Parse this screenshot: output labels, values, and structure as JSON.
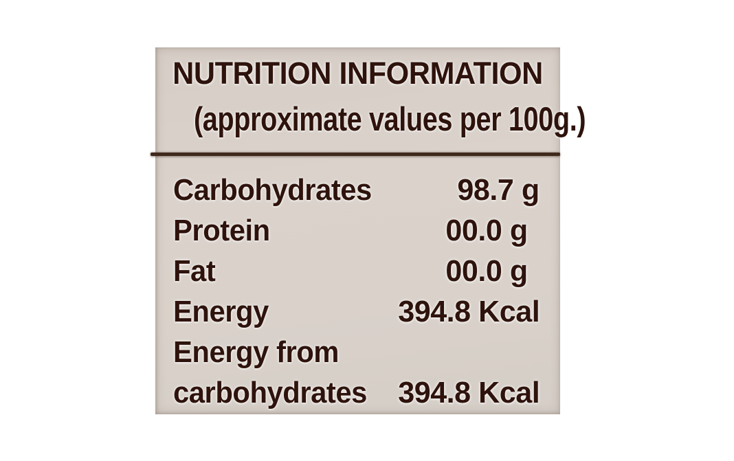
{
  "nutrition_label": {
    "title": "NUTRITION INFORMATION",
    "subtitle": "(approximate values per 100g.)",
    "rows": [
      {
        "label": "Carbohydrates",
        "value": "98.7 g"
      },
      {
        "label": "Protein",
        "value": "00.0 g"
      },
      {
        "label": "Fat",
        "value": "00.0 g"
      },
      {
        "label": "Energy",
        "value": "394.8 Kcal"
      },
      {
        "label": "Energy from",
        "value": ""
      },
      {
        "label": "carbohydrates",
        "value": "394.8 Kcal"
      }
    ],
    "colors": {
      "panel_bg": "#d8d1ca",
      "text": "#2e130c",
      "divider": "#40291c",
      "page_bg": "#ffffff"
    }
  }
}
